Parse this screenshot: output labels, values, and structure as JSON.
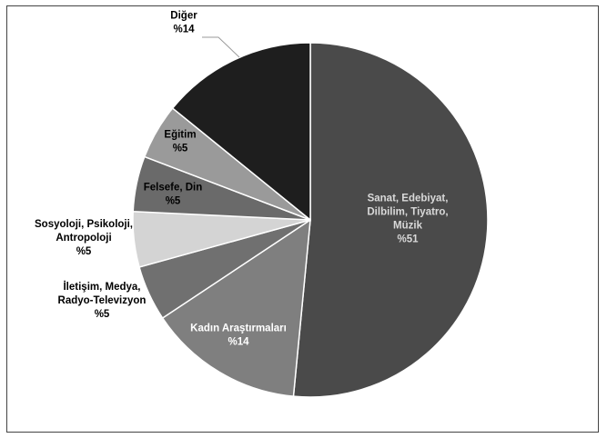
{
  "chart_data": {
    "type": "pie",
    "title": "",
    "slices": [
      {
        "lines": [
          "Sanat, Edebiyat,",
          "Dilbilim, Tiyatro,",
          "Müzik",
          "%51"
        ],
        "value": 51,
        "color": "#4a4a4a",
        "text_color": "#d9d9d9"
      },
      {
        "lines": [
          "Kadın Araştırmaları",
          "%14"
        ],
        "value": 14,
        "color": "#7f7f7f",
        "text_color": "#ffffff"
      },
      {
        "lines": [
          "İletişim, Medya,",
          "Radyo-Televizyon",
          "%5"
        ],
        "value": 5,
        "color": "#707070",
        "text_color": "#000000"
      },
      {
        "lines": [
          "Sosyoloji, Psikoloji,",
          "Antropoloji",
          "%5"
        ],
        "value": 5,
        "color": "#d4d4d4",
        "text_color": "#000000"
      },
      {
        "lines": [
          "Felsefe, Din",
          "%5"
        ],
        "value": 5,
        "color": "#6a6a6a",
        "text_color": "#000000"
      },
      {
        "lines": [
          "Eğitim",
          "%5"
        ],
        "value": 5,
        "color": "#9a9a9a",
        "text_color": "#000000"
      },
      {
        "lines": [
          "Diğer",
          "%14"
        ],
        "value": 14,
        "color": "#1e1e1e",
        "text_color": "#000000"
      }
    ],
    "legend": "none"
  }
}
